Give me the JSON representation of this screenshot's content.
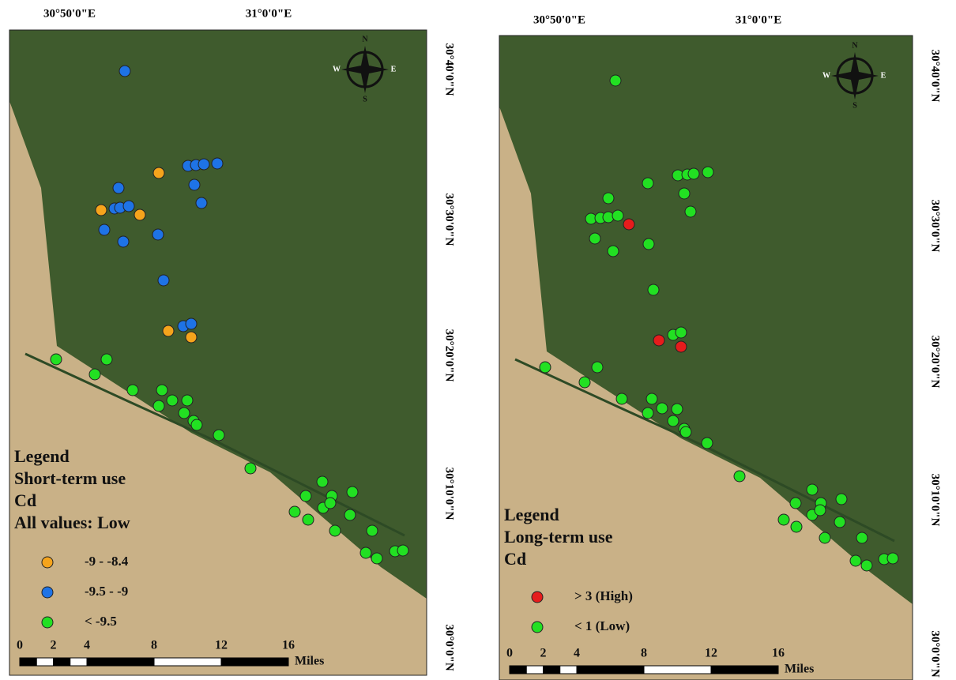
{
  "maps": [
    {
      "lon_labels": [
        "30°50'0\"E",
        "31°0'0\"E"
      ],
      "lat_labels": [
        "30°40'0\"N",
        "30°30'0\"N",
        "30°20'0\"N",
        "30°10'0\"N",
        "30°0'0\"N"
      ],
      "compass": {
        "n": "N",
        "e": "E",
        "s": "S",
        "w": "W"
      },
      "legend": {
        "title": "Legend",
        "lines": [
          "Short-term use",
          "Cd",
          "All values: Low"
        ],
        "items": [
          {
            "label": "-9  -  -8.4",
            "color": "#f5a41c"
          },
          {
            "label": "-9.5  -  -9",
            "color": "#1e73e6"
          },
          {
            "label": "< -9.5",
            "color": "#22e022"
          }
        ]
      },
      "scale": {
        "ticks": [
          0,
          2,
          4,
          8,
          12,
          16
        ],
        "unit": "Miles"
      }
    },
    {
      "lon_labels": [
        "30°50'0\"E",
        "31°0'0\"E"
      ],
      "lat_labels": [
        "30°40'0\"N",
        "30°30'0\"N",
        "30°20'0\"N",
        "30°10'0\"N",
        "30°0'0\"N"
      ],
      "compass": {
        "n": "N",
        "e": "E",
        "s": "S",
        "w": "W"
      },
      "legend": {
        "title": "Legend",
        "lines": [
          "Long-term use",
          "Cd"
        ],
        "items": [
          {
            "label": "> 3 (High)",
            "color": "#e61c1c"
          },
          {
            "label": "< 1 (Low)",
            "color": "#22e022"
          }
        ]
      },
      "scale": {
        "ticks": [
          0,
          2,
          4,
          8,
          12,
          16
        ],
        "unit": "Miles"
      }
    }
  ]
}
